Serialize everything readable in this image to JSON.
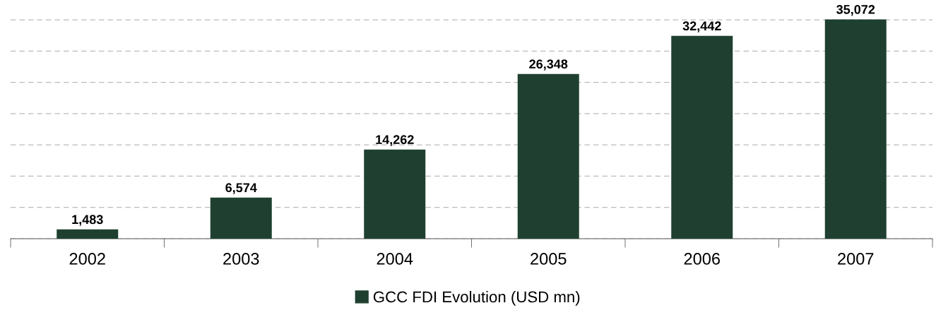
{
  "chart_data": {
    "type": "bar",
    "categories": [
      "2002",
      "2003",
      "2004",
      "2005",
      "2006",
      "2007"
    ],
    "series": [
      {
        "name": "GCC FDI Evolution (USD mn)",
        "color": "#1f4030",
        "values": [
          1483,
          6574,
          14262,
          26348,
          32442,
          35072
        ],
        "value_labels": [
          "1,483",
          "6,574",
          "14,262",
          "26,348",
          "32,442",
          "35,072"
        ]
      }
    ],
    "tick_labels": "x",
    "grid": "y",
    "legend": "bottom"
  }
}
